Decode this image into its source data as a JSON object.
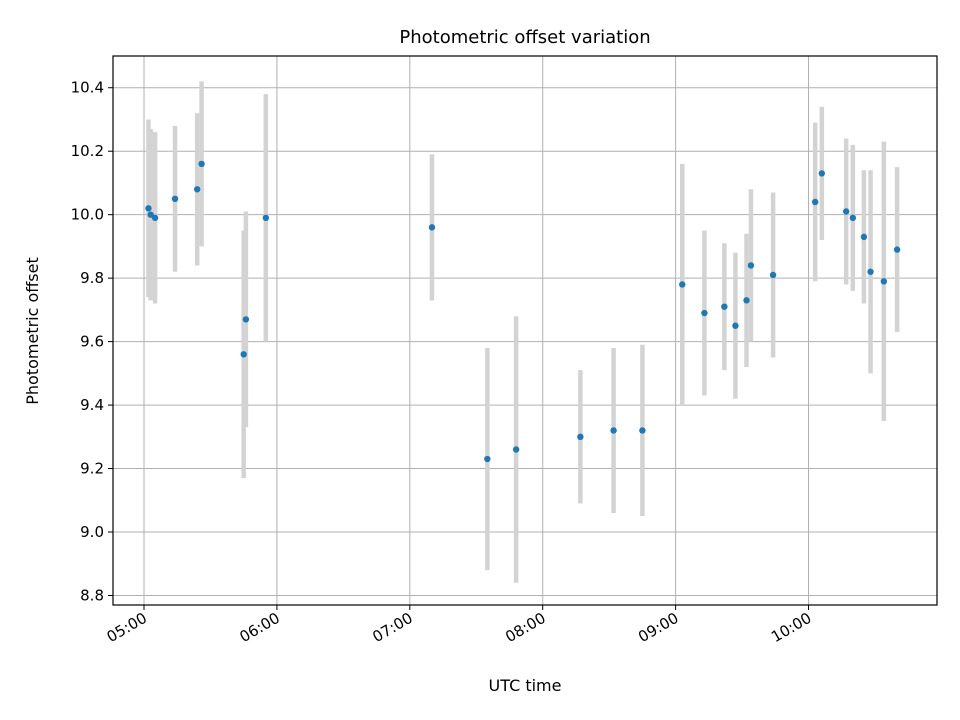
{
  "chart_data": {
    "type": "scatter",
    "title": "Photometric offset variation",
    "xlabel": "UTC time",
    "ylabel": "Photometric offset",
    "x_ticks": [
      "05:00",
      "06:00",
      "07:00",
      "08:00",
      "09:00",
      "10:00"
    ],
    "y_ticks": [
      "8.8",
      "9.0",
      "9.2",
      "9.4",
      "9.6",
      "9.8",
      "10.0",
      "10.2",
      "10.4"
    ],
    "xlim": [
      "04:46",
      "10:58"
    ],
    "ylim": [
      8.77,
      10.5
    ],
    "grid": true,
    "colors": {
      "point": "#1f77b4",
      "errorbar": "#d3d3d3",
      "grid": "#b0b0b0"
    },
    "points": [
      {
        "t": "05:02",
        "y": 10.02,
        "yerr": 0.28
      },
      {
        "t": "05:03",
        "y": 10.0,
        "yerr": 0.27
      },
      {
        "t": "05:05",
        "y": 9.99,
        "yerr": 0.27
      },
      {
        "t": "05:14",
        "y": 10.05,
        "yerr": 0.23
      },
      {
        "t": "05:24",
        "y": 10.08,
        "yerr": 0.24
      },
      {
        "t": "05:26",
        "y": 10.16,
        "yerr": 0.26
      },
      {
        "t": "05:45",
        "y": 9.56,
        "yerr": 0.39
      },
      {
        "t": "05:46",
        "y": 9.67,
        "yerr": 0.34
      },
      {
        "t": "05:55",
        "y": 9.99,
        "yerr": 0.39
      },
      {
        "t": "07:10",
        "y": 9.96,
        "yerr": 0.23
      },
      {
        "t": "07:35",
        "y": 9.23,
        "yerr": 0.35
      },
      {
        "t": "07:48",
        "y": 9.26,
        "yerr": 0.42
      },
      {
        "t": "08:17",
        "y": 9.3,
        "yerr": 0.21
      },
      {
        "t": "08:32",
        "y": 9.32,
        "yerr": 0.26
      },
      {
        "t": "08:45",
        "y": 9.32,
        "yerr": 0.27
      },
      {
        "t": "09:03",
        "y": 9.78,
        "yerr": 0.38
      },
      {
        "t": "09:13",
        "y": 9.69,
        "yerr": 0.26
      },
      {
        "t": "09:22",
        "y": 9.71,
        "yerr": 0.2
      },
      {
        "t": "09:27",
        "y": 9.65,
        "yerr": 0.23
      },
      {
        "t": "09:32",
        "y": 9.73,
        "yerr": 0.21
      },
      {
        "t": "09:34",
        "y": 9.84,
        "yerr": 0.24
      },
      {
        "t": "09:44",
        "y": 9.81,
        "yerr": 0.26
      },
      {
        "t": "10:03",
        "y": 10.04,
        "yerr": 0.25
      },
      {
        "t": "10:06",
        "y": 10.13,
        "yerr": 0.21
      },
      {
        "t": "10:17",
        "y": 10.01,
        "yerr": 0.23
      },
      {
        "t": "10:20",
        "y": 9.99,
        "yerr": 0.23
      },
      {
        "t": "10:25",
        "y": 9.93,
        "yerr": 0.21
      },
      {
        "t": "10:28",
        "y": 9.82,
        "yerr": 0.32
      },
      {
        "t": "10:34",
        "y": 9.79,
        "yerr": 0.44
      },
      {
        "t": "10:40",
        "y": 9.89,
        "yerr": 0.26
      }
    ]
  }
}
